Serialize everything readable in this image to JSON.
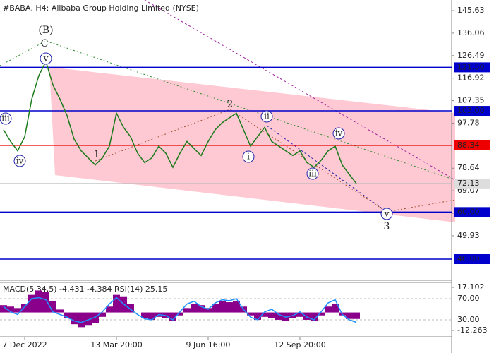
{
  "chart_data": [
    {
      "type": "line",
      "title": "#BABA, H4:  Alibaba Group Holding Limited (NYSE)",
      "categories": [
        null,
        null,
        null,
        "7 Dec 2022",
        null,
        null,
        null,
        null,
        null,
        null,
        null,
        null,
        null,
        null,
        null,
        null,
        "13 Mar 20:00",
        null,
        null,
        null,
        null,
        null,
        null,
        null,
        null,
        null,
        null,
        null,
        null,
        "9 Jun 16:00",
        null,
        null,
        null,
        null,
        null,
        null,
        null,
        null,
        null,
        null,
        null,
        null,
        "12 Sep 20:00",
        null,
        null,
        null,
        null,
        null,
        null,
        null,
        null
      ],
      "values": [
        95,
        90,
        86,
        92,
        108,
        118,
        124,
        114,
        108,
        101,
        91,
        86,
        83,
        80,
        83,
        88,
        102,
        96,
        92,
        85,
        81,
        83,
        88,
        85,
        79,
        85,
        90,
        87,
        84,
        90,
        95,
        98,
        100,
        102,
        95,
        88,
        92,
        96,
        90,
        88,
        86,
        84,
        86,
        81,
        79,
        82,
        86,
        88,
        80,
        76,
        72.13
      ],
      "color": "#1a7a1a",
      "ylim": [
        31.0,
        150.13
      ],
      "yticks": [
        145.63,
        136.06,
        126.49,
        116.92,
        107.35,
        97.78,
        78.64,
        69.07,
        59.5,
        49.93
      ],
      "last_price": 72.13,
      "levels": [
        {
          "value": 121.5,
          "label": "121.50",
          "color": "#0000cc"
        },
        {
          "value": 103,
          "label": "103.00",
          "color": "#0000cc"
        },
        {
          "value": 88.34,
          "label": "88.34",
          "color": "#ee0000"
        },
        {
          "value": 60,
          "label": "60.00",
          "color": "#0000cc"
        },
        {
          "value": 40,
          "label": "40.00",
          "color": "#0000cc"
        }
      ],
      "annotations": [
        {
          "text": "(B)",
          "color": "#2e8b2e",
          "circled": false
        },
        {
          "text": "C",
          "color": "#b03a2e",
          "circled": false
        },
        {
          "text": "v",
          "color": "#2222aa",
          "circled": true
        },
        {
          "text": "iii",
          "color": "#2222aa",
          "circled": true
        },
        {
          "text": "iv",
          "color": "#2222aa",
          "circled": true
        },
        {
          "text": "1",
          "color": "#a0522d",
          "circled": false
        },
        {
          "text": "2",
          "color": "#a0522d",
          "circled": false
        },
        {
          "text": "i",
          "color": "#2222aa",
          "circled": true
        },
        {
          "text": "ii",
          "color": "#2222aa",
          "circled": true
        },
        {
          "text": "iii",
          "color": "#2222aa",
          "circled": true
        },
        {
          "text": "iv",
          "color": "#2222aa",
          "circled": true
        },
        {
          "text": "v",
          "color": "#2222aa",
          "circled": true
        },
        {
          "text": "3",
          "color": "#a0522d",
          "circled": false
        }
      ]
    },
    {
      "type": "bar",
      "title": "MACD(5,34,5) -4.431 -4.384 RSI(14) 25.15",
      "values": [
        5,
        4,
        3,
        6,
        12,
        15,
        14,
        8,
        2,
        -4,
        -8,
        -10,
        -9,
        -7,
        -3,
        4,
        12,
        11,
        6,
        0,
        -4,
        -5,
        -3,
        -4,
        -6,
        -2,
        3,
        6,
        5,
        3,
        6,
        8,
        7,
        8,
        4,
        -2,
        -5,
        -3,
        -4,
        -5,
        -6,
        -4,
        -3,
        -5,
        -6,
        -2,
        4,
        6,
        -2,
        -4.4,
        -4.431
      ],
      "color": "#8b008b",
      "ylim": [
        -16.1,
        20.5
      ],
      "yticks": [
        17.102,
        -12.263
      ],
      "y2lim": [
        -0.7,
        100.7
      ],
      "y2ticks": [
        {
          "value": 70,
          "label": "70.00"
        },
        {
          "value": 30,
          "label": "30.00"
        }
      ],
      "series": [
        {
          "color": "#1e90ff",
          "axis": "y2",
          "values": [
            55,
            45,
            40,
            55,
            70,
            72,
            68,
            45,
            40,
            35,
            28,
            25,
            30,
            35,
            45,
            60,
            72,
            60,
            50,
            40,
            32,
            30,
            40,
            38,
            30,
            45,
            60,
            65,
            55,
            50,
            62,
            68,
            66,
            70,
            50,
            35,
            30,
            45,
            50,
            40,
            35,
            38,
            45,
            35,
            30,
            45,
            62,
            68,
            40,
            30,
            25.15
          ]
        }
      ]
    }
  ]
}
